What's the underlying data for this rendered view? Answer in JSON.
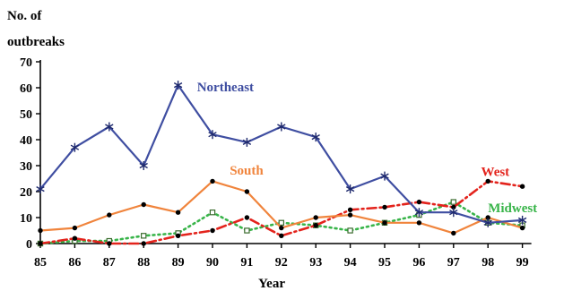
{
  "chart_data": {
    "type": "line",
    "ylabel": "No. of outbreaks",
    "ylabel_lines": [
      "No. of",
      "outbreaks"
    ],
    "xlabel": "Year",
    "ylim": [
      0,
      70
    ],
    "yticks": [
      0,
      10,
      20,
      30,
      40,
      50,
      60,
      70
    ],
    "categories": [
      "85",
      "86",
      "87",
      "88",
      "89",
      "90",
      "91",
      "92",
      "93",
      "94",
      "95",
      "96",
      "97",
      "98",
      "99"
    ],
    "grid": false,
    "legend": "inline labels",
    "series": [
      {
        "name": "Northeast",
        "color": "#3f4ea1",
        "line_style": "solid",
        "marker": "asterisk",
        "values": [
          21,
          37,
          45,
          30,
          61,
          42,
          39,
          45,
          41,
          21,
          26,
          12,
          12,
          8,
          9
        ]
      },
      {
        "name": "South",
        "color": "#f0843c",
        "line_style": "solid",
        "marker": "dot",
        "values": [
          5,
          6,
          11,
          15,
          12,
          24,
          20,
          6,
          10,
          11,
          8,
          8,
          4,
          10,
          6
        ]
      },
      {
        "name": "West",
        "color": "#e3231c",
        "line_style": "dash-dot",
        "marker": "dot",
        "values": [
          0,
          2,
          0,
          0,
          3,
          5,
          10,
          3,
          7,
          13,
          14,
          16,
          14,
          24,
          22
        ]
      },
      {
        "name": "Midwest",
        "color": "#38b449",
        "line_style": "dotted",
        "marker": "square",
        "values": [
          0,
          1,
          1,
          3,
          4,
          12,
          5,
          8,
          7,
          5,
          8,
          11,
          16,
          8,
          7
        ]
      }
    ]
  }
}
